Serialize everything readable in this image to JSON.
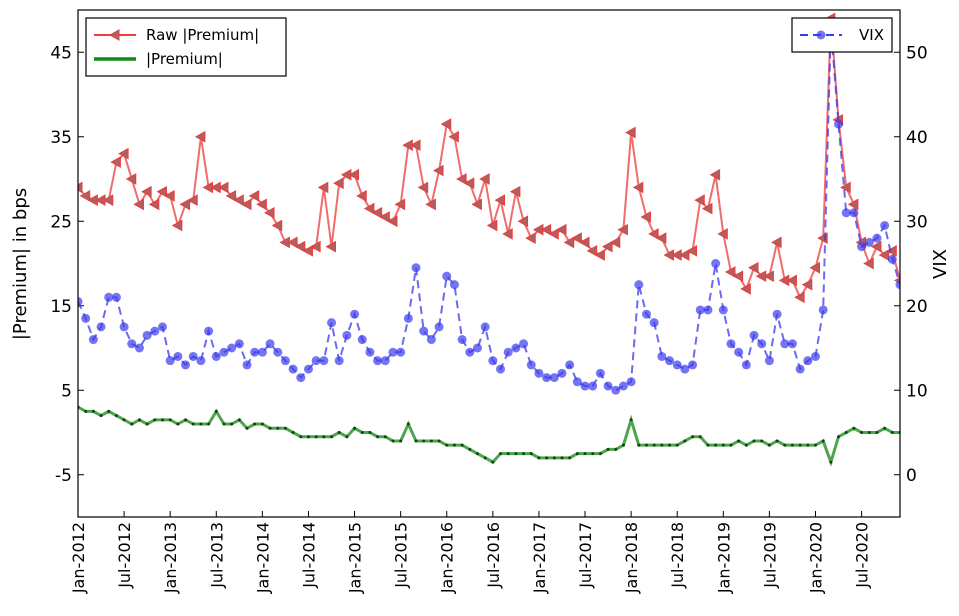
{
  "chart_data": {
    "type": "line",
    "y_label": "|Premium| in bps",
    "y2_label": "VIX",
    "xlim": [
      "2012-01",
      "2020-12"
    ],
    "xticks": [
      {
        "value": "2012-01",
        "label": "Jan-2012"
      },
      {
        "value": "2012-07",
        "label": "Jul-2012"
      },
      {
        "value": "2013-01",
        "label": "Jan-2013"
      },
      {
        "value": "2013-07",
        "label": "Jul-2013"
      },
      {
        "value": "2014-01",
        "label": "Jan-2014"
      },
      {
        "value": "2014-07",
        "label": "Jul-2014"
      },
      {
        "value": "2015-01",
        "label": "Jan-2015"
      },
      {
        "value": "2015-07",
        "label": "Jul-2015"
      },
      {
        "value": "2016-01",
        "label": "Jan-2016"
      },
      {
        "value": "2016-07",
        "label": "Jul-2016"
      },
      {
        "value": "2017-01",
        "label": "Jan-2017"
      },
      {
        "value": "2017-07",
        "label": "Jul-2017"
      },
      {
        "value": "2018-01",
        "label": "Jan-2018"
      },
      {
        "value": "2018-07",
        "label": "Jul-2018"
      },
      {
        "value": "2019-01",
        "label": "Jan-2019"
      },
      {
        "value": "2019-07",
        "label": "Jul-2019"
      },
      {
        "value": "2020-01",
        "label": "Jan-2020"
      },
      {
        "value": "2020-07",
        "label": "Jul-2020"
      }
    ],
    "ylim": [
      -10,
      50
    ],
    "yticks": [
      -5,
      5,
      15,
      25,
      35,
      45
    ],
    "y2lim": [
      -5,
      55
    ],
    "y2ticks": [
      0,
      10,
      20,
      30,
      40,
      50
    ],
    "legend": "upper left",
    "legend_y2": "upper right",
    "start": "2012-01",
    "series": [
      {
        "name": "Raw |Premium|",
        "color": "#ee3b3b",
        "marker": "triangle-left",
        "style": "solid",
        "values": [
          29,
          28,
          27.5,
          27.5,
          27.5,
          32,
          33,
          30,
          27,
          28.5,
          27,
          28.5,
          28,
          24.5,
          27,
          27.5,
          35,
          29,
          29,
          29,
          28,
          27.5,
          27,
          28,
          27,
          26,
          24.5,
          22.5,
          22.5,
          22,
          21.5,
          22,
          29,
          22,
          29.5,
          30.5,
          30.5,
          28,
          26.5,
          26,
          25.5,
          25,
          27,
          34,
          34,
          29,
          27,
          31,
          36.5,
          35,
          30,
          29.5,
          27,
          30,
          24.5,
          27.5,
          23.5,
          28.5,
          25,
          23,
          24,
          24,
          23.5,
          24,
          22.5,
          23,
          22.5,
          21.5,
          21,
          22,
          22.5,
          24,
          35.5,
          29,
          25.5,
          23.5,
          23,
          21,
          21,
          21,
          21.5,
          27.5,
          26.5,
          30.5,
          23.5,
          19,
          18.5,
          17,
          19.5,
          18.5,
          18.5,
          22.5,
          18,
          18,
          16,
          17.5,
          19.5,
          23,
          49,
          37,
          29,
          27,
          22.5,
          20,
          22,
          21,
          21.5,
          18
        ]
      },
      {
        "name": "|Premium|",
        "color": "#118811",
        "marker": "dot",
        "style": "solid",
        "values": [
          3,
          2.5,
          2.5,
          2,
          2.5,
          2,
          1.5,
          1,
          1.5,
          1,
          1.5,
          1.5,
          1.5,
          1,
          1.5,
          1,
          1,
          1,
          2.5,
          1,
          1,
          1.5,
          0.5,
          1,
          1,
          0.5,
          0.5,
          0.5,
          0,
          -0.5,
          -0.5,
          -0.5,
          -0.5,
          -0.5,
          0,
          -0.5,
          0.5,
          0,
          0,
          -0.5,
          -0.5,
          -1,
          -1,
          1,
          -1,
          -1,
          -1,
          -1,
          -1.5,
          -1.5,
          -1.5,
          -2,
          -2.5,
          -3,
          -3.5,
          -2.5,
          -2.5,
          -2.5,
          -2.5,
          -2.5,
          -3,
          -3,
          -3,
          -3,
          -3,
          -2.5,
          -2.5,
          -2.5,
          -2.5,
          -2,
          -2,
          -1.5,
          1.5,
          -1.5,
          -1.5,
          -1.5,
          -1.5,
          -1.5,
          -1.5,
          -1,
          -0.5,
          -0.5,
          -1.5,
          -1.5,
          -1.5,
          -1.5,
          -1,
          -1.5,
          -1,
          -1,
          -1.5,
          -1,
          -1.5,
          -1.5,
          -1.5,
          -1.5,
          -1.5,
          -1,
          -3.5,
          -0.5,
          0,
          0.5,
          0,
          0,
          0,
          0.5,
          0,
          0
        ]
      },
      {
        "name": "VIX",
        "color": "#3a3aee",
        "marker": "circle",
        "style": "dashed",
        "axis": "y2",
        "values": [
          20.5,
          18.5,
          16,
          17.5,
          21,
          21,
          17.5,
          15.5,
          15,
          16.5,
          17,
          17.5,
          13.5,
          14,
          13,
          14,
          13.5,
          17,
          14,
          14.5,
          15,
          15.5,
          13,
          14.5,
          14.5,
          15.5,
          14.5,
          13.5,
          12.5,
          11.5,
          12.5,
          13.5,
          13.5,
          18,
          13.5,
          16.5,
          19,
          16,
          14.5,
          13.5,
          13.5,
          14.5,
          14.5,
          18.5,
          24.5,
          17,
          16,
          17.5,
          23.5,
          22.5,
          16,
          14.5,
          15,
          17.5,
          13.5,
          12.5,
          14.5,
          15,
          15.5,
          13,
          12,
          11.5,
          11.5,
          12,
          13,
          11,
          10.5,
          10.5,
          12,
          10.5,
          10,
          10.5,
          11,
          22.5,
          19,
          18,
          14,
          13.5,
          13,
          12.5,
          13,
          19.5,
          19.5,
          25,
          19.5,
          15.5,
          14.5,
          13,
          16.5,
          15.5,
          13.5,
          19,
          15.5,
          15.5,
          12.5,
          13.5,
          14,
          19.5,
          53,
          41.5,
          31,
          31,
          27,
          27.5,
          28,
          29.5,
          25.5,
          22.5
        ]
      }
    ]
  }
}
